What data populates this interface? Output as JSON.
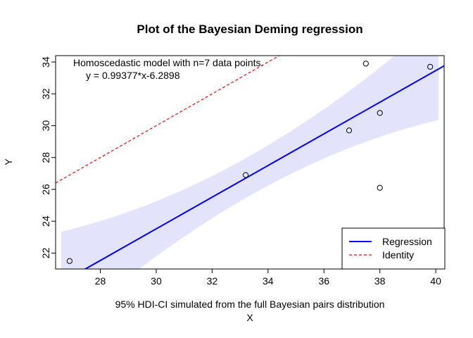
{
  "chart_data": {
    "type": "scatter",
    "title": "Plot of the Bayesian Deming regression",
    "xlabel": "X",
    "ylabel": "Y",
    "subtitle": "95% HDI-CI simulated from the full Bayesian pairs distribution",
    "xlim": [
      26.4,
      40.3
    ],
    "ylim": [
      21.0,
      34.4
    ],
    "x_ticks": [
      28,
      30,
      32,
      34,
      36,
      38,
      40
    ],
    "y_ticks": [
      22,
      24,
      26,
      28,
      30,
      32,
      34
    ],
    "grid": false,
    "annotations": {
      "model": "Homoscedastic model with n=7 data points.",
      "equation": "y = 0.99377*x-6.2898"
    },
    "points": [
      {
        "x": 26.9,
        "y": 21.5
      },
      {
        "x": 33.2,
        "y": 26.9
      },
      {
        "x": 36.9,
        "y": 29.7
      },
      {
        "x": 37.5,
        "y": 33.9
      },
      {
        "x": 38.0,
        "y": 30.8
      },
      {
        "x": 38.0,
        "y": 26.1
      },
      {
        "x": 39.8,
        "y": 33.7
      }
    ],
    "regression": {
      "slope": 0.99377,
      "intercept": -6.2898,
      "color": "#0000ff"
    },
    "identity": {
      "slope": 1,
      "intercept": 0,
      "color": "#ff0000"
    },
    "ci_band": {
      "color": "#e3e3fc",
      "x_range": [
        26.6,
        40.1
      ],
      "half_width_at_center": 1.25,
      "half_width_at_ends": 3.2
    },
    "legend": {
      "position": "bottom-right",
      "entries": [
        {
          "label": "Regression",
          "color": "#0000ff",
          "style": "solid"
        },
        {
          "label": "Identity",
          "color": "#ff0000",
          "style": "dashed"
        }
      ]
    }
  }
}
